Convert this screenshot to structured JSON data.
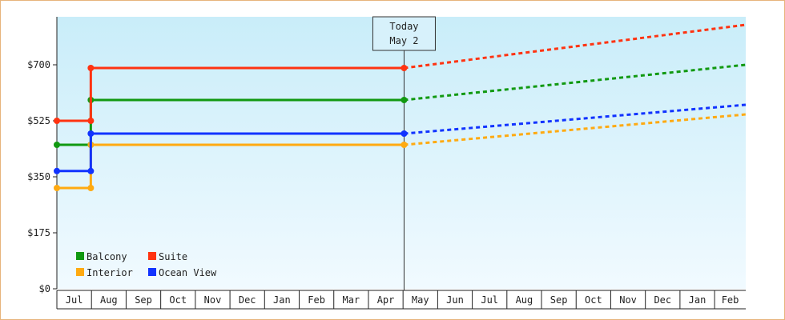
{
  "chart_data": {
    "type": "line",
    "title": "",
    "xlabel": "",
    "ylabel": "",
    "ylim": [
      0,
      850
    ],
    "y_ticks": [
      {
        "value": 0,
        "label": "$0"
      },
      {
        "value": 175,
        "label": "$175"
      },
      {
        "value": 350,
        "label": "$350"
      },
      {
        "value": 525,
        "label": "$525"
      },
      {
        "value": 700,
        "label": "$700"
      }
    ],
    "x_months": [
      {
        "label": "Jul",
        "start": 0.5,
        "end": 1.5
      },
      {
        "label": "Aug",
        "start": 1.5,
        "end": 2.5
      },
      {
        "label": "Sep",
        "start": 2.5,
        "end": 3.5
      },
      {
        "label": "Oct",
        "start": 3.5,
        "end": 4.5
      },
      {
        "label": "Nov",
        "start": 4.5,
        "end": 5.5
      },
      {
        "label": "Dec",
        "start": 5.5,
        "end": 6.5
      },
      {
        "label": "Jan",
        "start": 6.5,
        "end": 7.5
      },
      {
        "label": "Feb",
        "start": 7.5,
        "end": 8.5
      },
      {
        "label": "Mar",
        "start": 8.5,
        "end": 9.5
      },
      {
        "label": "Apr",
        "start": 9.5,
        "end": 10.5
      },
      {
        "label": "May",
        "start": 10.5,
        "end": 11.5
      },
      {
        "label": "Jun",
        "start": 11.5,
        "end": 12.5
      },
      {
        "label": "Jul",
        "start": 12.5,
        "end": 13.5
      },
      {
        "label": "Aug",
        "start": 13.5,
        "end": 14.5
      },
      {
        "label": "Sep",
        "start": 14.5,
        "end": 15.5
      },
      {
        "label": "Oct",
        "start": 15.5,
        "end": 16.5
      },
      {
        "label": "Nov",
        "start": 16.5,
        "end": 17.5
      },
      {
        "label": "Dec",
        "start": 17.5,
        "end": 18.5
      },
      {
        "label": "Jan",
        "start": 18.5,
        "end": 19.5
      },
      {
        "label": "Feb",
        "start": 19.5,
        "end": 20.5
      }
    ],
    "xlim": [
      0.5,
      20.4
    ],
    "today": {
      "label_line1": "Today",
      "label_line2": "May 2",
      "x": 10.53
    },
    "series": [
      {
        "name": "Balcony",
        "color": "#119911",
        "points": [
          [
            0.5,
            450
          ],
          [
            1.48,
            450
          ],
          [
            1.48,
            590
          ],
          [
            10.53,
            590
          ]
        ],
        "forecast": [
          [
            10.53,
            590
          ],
          [
            20.4,
            700
          ]
        ]
      },
      {
        "name": "Suite",
        "color": "#ff3311",
        "points": [
          [
            0.5,
            525
          ],
          [
            1.48,
            525
          ],
          [
            1.48,
            690
          ],
          [
            10.53,
            690
          ]
        ],
        "forecast": [
          [
            10.53,
            690
          ],
          [
            20.4,
            825
          ]
        ]
      },
      {
        "name": "Interior",
        "color": "#ffaa11",
        "points": [
          [
            0.5,
            315
          ],
          [
            1.48,
            315
          ],
          [
            1.48,
            450
          ],
          [
            10.53,
            450
          ]
        ],
        "forecast": [
          [
            10.53,
            450
          ],
          [
            20.4,
            545
          ]
        ]
      },
      {
        "name": "Ocean View",
        "color": "#1133ff",
        "points": [
          [
            0.5,
            368
          ],
          [
            1.48,
            368
          ],
          [
            1.48,
            485
          ],
          [
            10.53,
            485
          ]
        ],
        "forecast": [
          [
            10.53,
            485
          ],
          [
            20.4,
            575
          ]
        ]
      }
    ],
    "legend_position": "bottom-left",
    "grid": false
  }
}
